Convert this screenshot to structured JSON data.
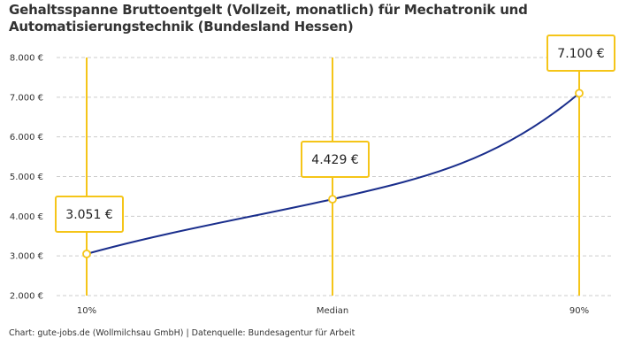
{
  "chart_data": {
    "type": "line",
    "title": "Gehaltsspanne Bruttoentgelt (Vollzeit, monatlich) für Mechatronik und Automatisierungstechnik (Bundesland Hessen)",
    "categories": [
      "10%",
      "Median",
      "90%"
    ],
    "values": [
      3051,
      4429,
      7100
    ],
    "data_labels": [
      "3.051 €",
      "4.429 €",
      "7.100 €"
    ],
    "ylim": [
      2000,
      8000
    ],
    "yticks": [
      2000,
      3000,
      4000,
      5000,
      6000,
      7000,
      8000
    ],
    "ytick_labels": [
      "2.000 €",
      "3.000 €",
      "4.000 €",
      "5.000 €",
      "6.000 €",
      "7.000 €",
      "8.000 €"
    ],
    "grid": true,
    "xlabel": "",
    "ylabel": "",
    "colors": {
      "line": "#1a2e8c",
      "marker": "#f5c518",
      "grid": "#cccccc"
    }
  },
  "credit": "Chart: gute-jobs.de (Wollmilchsau GmbH) | Datenquelle: Bundesagentur für Arbeit"
}
